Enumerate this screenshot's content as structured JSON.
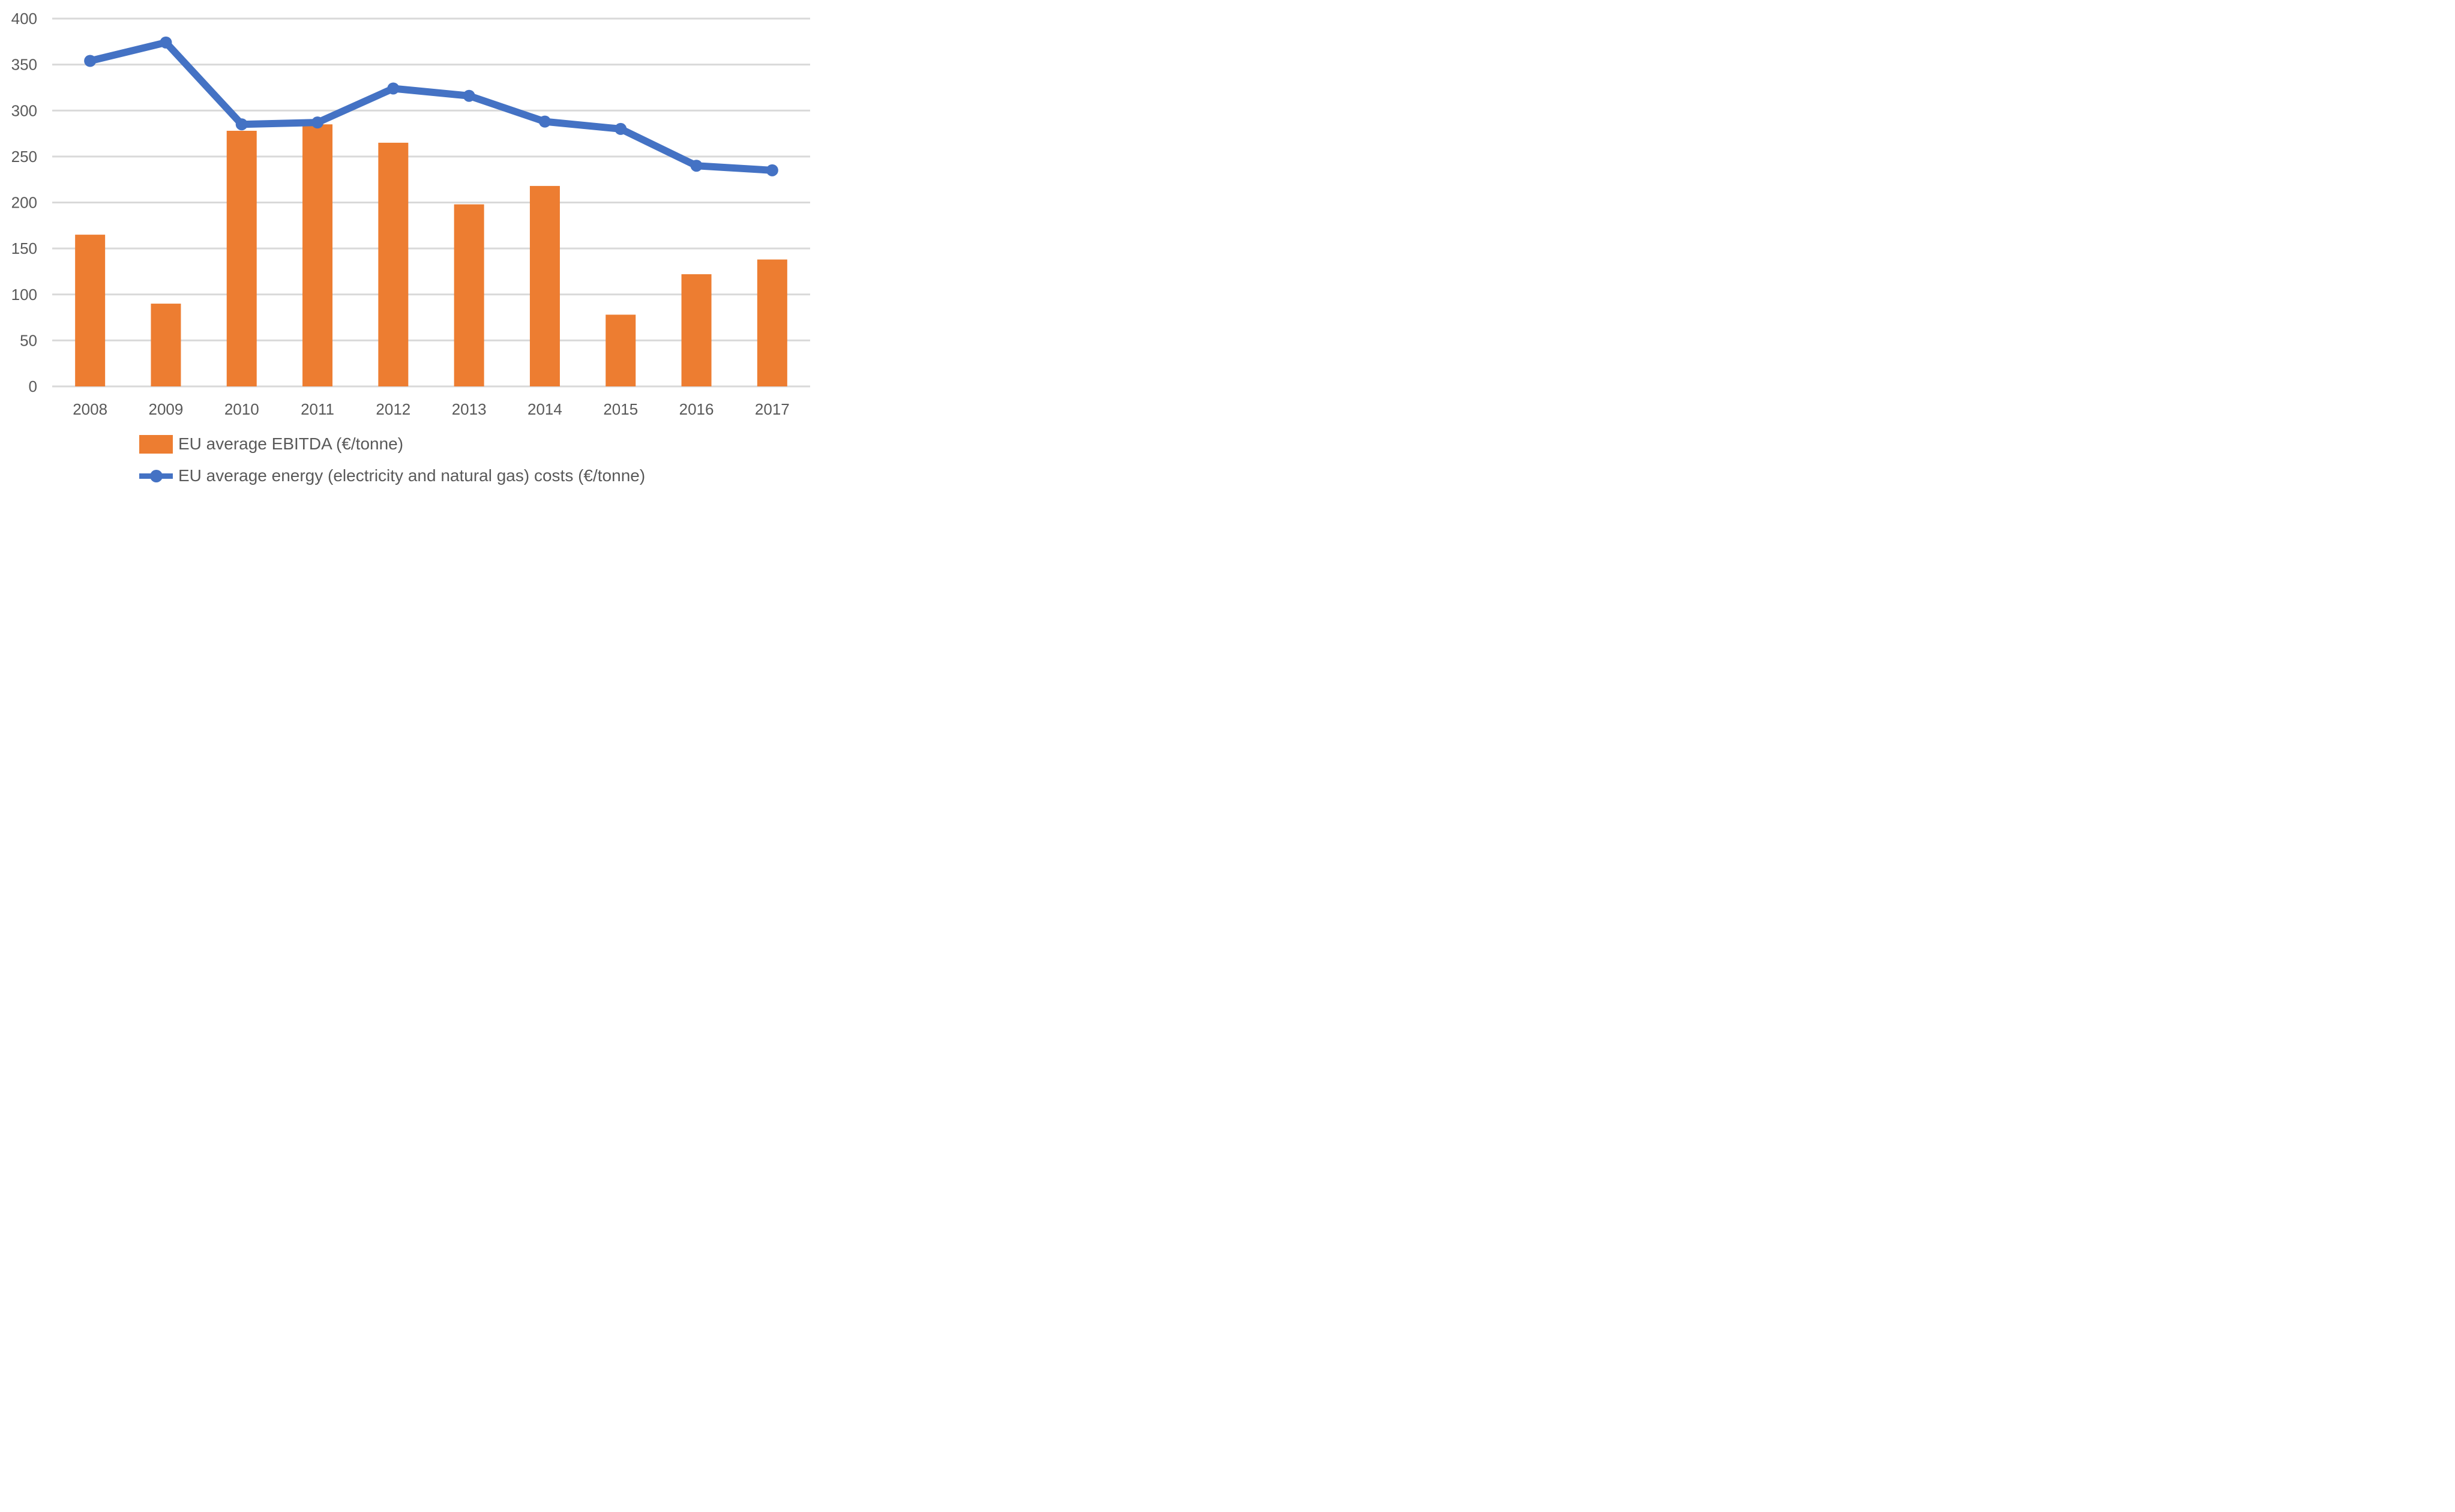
{
  "chart_data": {
    "type": "combo-bar-line",
    "title": "",
    "xlabel": "",
    "ylabel": "",
    "categories": [
      "2008",
      "2009",
      "2010",
      "2011",
      "2012",
      "2013",
      "2014",
      "2015",
      "2016",
      "2017"
    ],
    "series": [
      {
        "name": "EU average EBITDA (€/tonne)",
        "type": "bar",
        "color": "#ED7D31",
        "values": [
          165,
          90,
          278,
          285,
          265,
          198,
          218,
          78,
          122,
          138
        ]
      },
      {
        "name": "EU average energy (electricity and natural gas) costs (€/tonne)",
        "type": "line",
        "color": "#4472C4",
        "values": [
          354,
          374,
          285,
          287,
          324,
          316,
          288,
          280,
          240,
          235
        ]
      }
    ],
    "ylim": [
      0,
      400
    ],
    "ytick_step": 50,
    "y_ticks": [
      "0",
      "50",
      "100",
      "150",
      "200",
      "250",
      "300",
      "350",
      "400"
    ],
    "grid": true,
    "gridline_color": "#D9D9D9",
    "tick_label_color": "#595959",
    "legend_position": "bottom-left"
  }
}
